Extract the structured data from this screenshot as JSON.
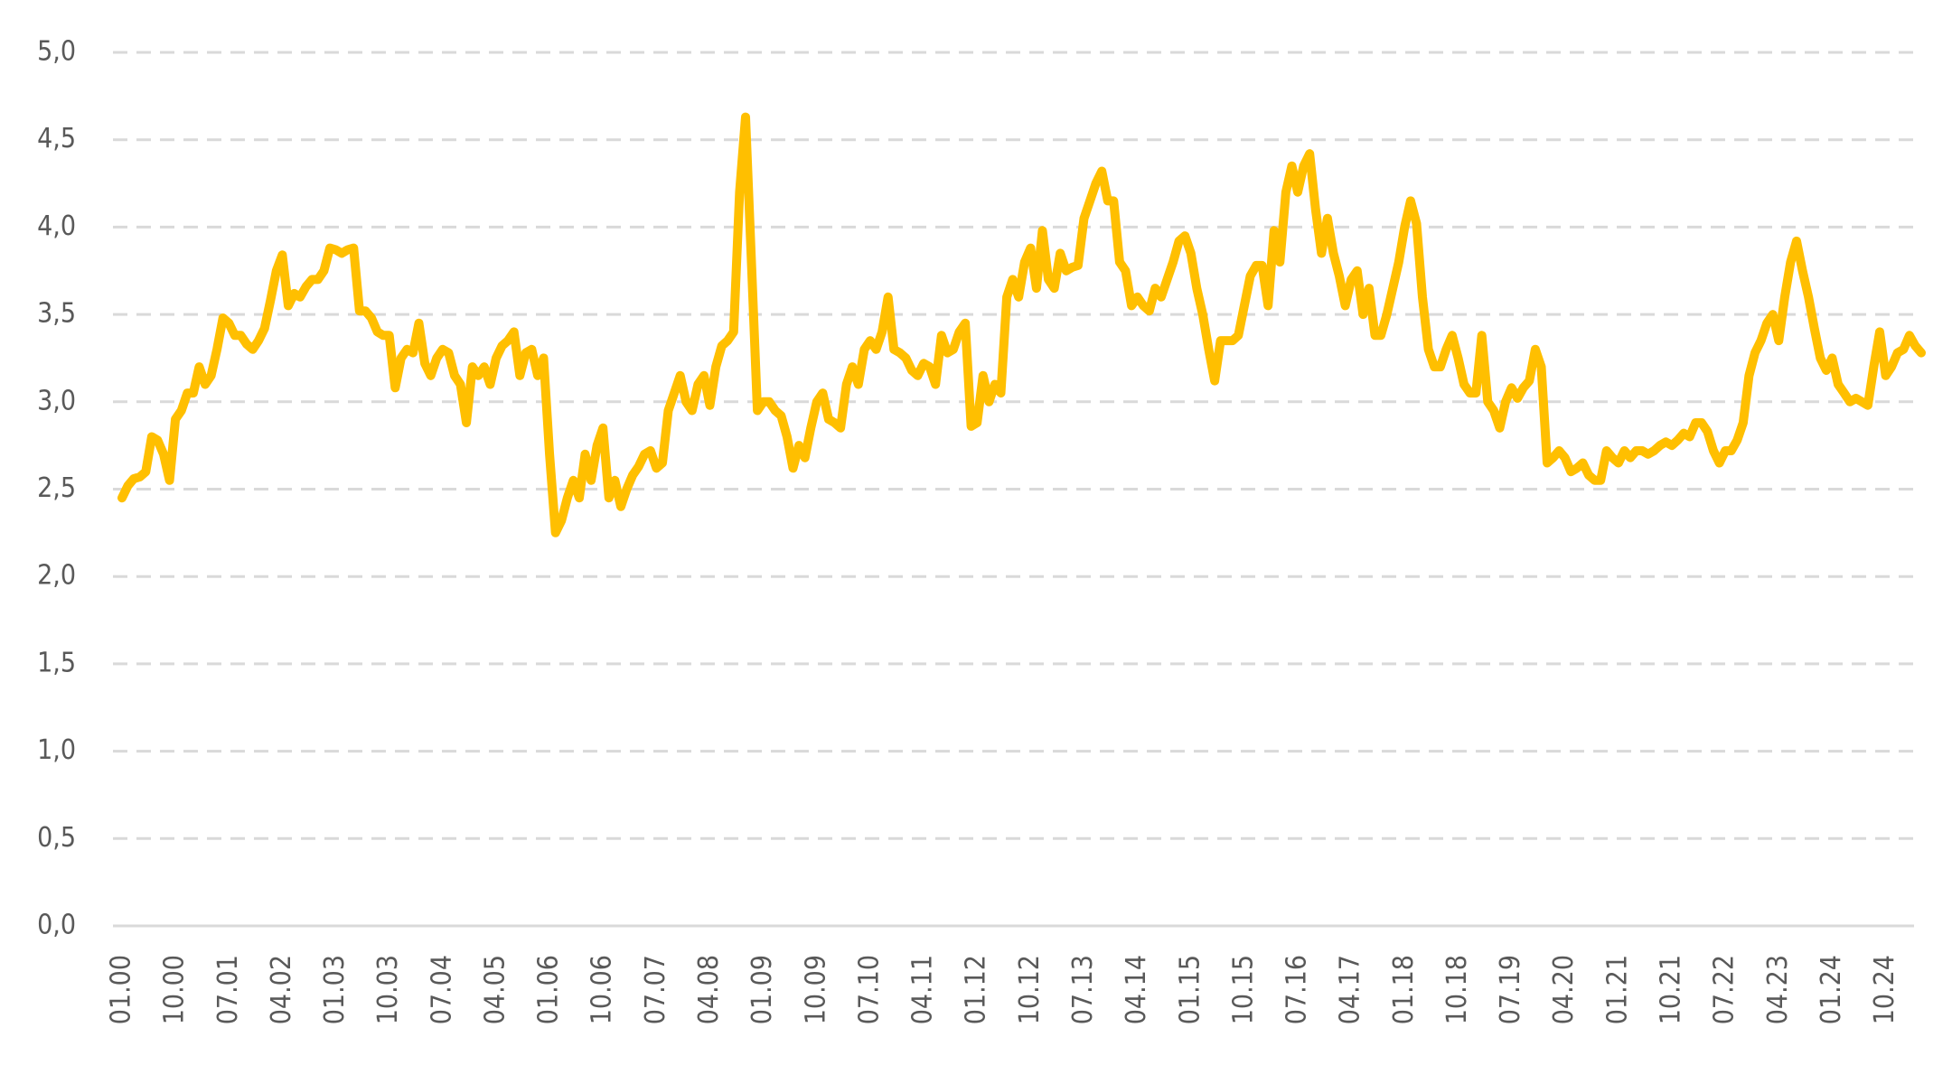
{
  "chart_data": {
    "type": "line",
    "color": "#ffbf00",
    "grid": true,
    "ylim": [
      0,
      5
    ],
    "yticks": [
      {
        "value": 0,
        "label": "0,0"
      },
      {
        "value": 0.5,
        "label": "0,5"
      },
      {
        "value": 1,
        "label": "1,0"
      },
      {
        "value": 1.5,
        "label": "1,5"
      },
      {
        "value": 2,
        "label": "2,0"
      },
      {
        "value": 2.5,
        "label": "2,5"
      },
      {
        "value": 3,
        "label": "3,0"
      },
      {
        "value": 3.5,
        "label": "3,5"
      },
      {
        "value": 4,
        "label": "4,0"
      },
      {
        "value": 4.5,
        "label": "4,5"
      },
      {
        "value": 5,
        "label": "5,0"
      }
    ],
    "categories": [
      "01.00",
      null,
      null,
      null,
      null,
      null,
      null,
      null,
      null,
      "10.00",
      null,
      null,
      null,
      null,
      null,
      null,
      null,
      null,
      "07.01",
      null,
      null,
      null,
      null,
      null,
      null,
      null,
      null,
      "04.02",
      null,
      null,
      null,
      null,
      null,
      null,
      null,
      null,
      "01.03",
      null,
      null,
      null,
      null,
      null,
      null,
      null,
      null,
      "10.03",
      null,
      null,
      null,
      null,
      null,
      null,
      null,
      null,
      "07.04",
      null,
      null,
      null,
      null,
      null,
      null,
      null,
      null,
      "04.05",
      null,
      null,
      null,
      null,
      null,
      null,
      null,
      null,
      "01.06",
      null,
      null,
      null,
      null,
      null,
      null,
      null,
      null,
      "10.06",
      null,
      null,
      null,
      null,
      null,
      null,
      null,
      null,
      "07.07",
      null,
      null,
      null,
      null,
      null,
      null,
      null,
      null,
      "04.08",
      null,
      null,
      null,
      null,
      null,
      null,
      null,
      null,
      "01.09",
      null,
      null,
      null,
      null,
      null,
      null,
      null,
      null,
      "10.09",
      null,
      null,
      null,
      null,
      null,
      null,
      null,
      null,
      "07.10",
      null,
      null,
      null,
      null,
      null,
      null,
      null,
      null,
      "04.11",
      null,
      null,
      null,
      null,
      null,
      null,
      null,
      null,
      "01.12",
      null,
      null,
      null,
      null,
      null,
      null,
      null,
      null,
      "10.12",
      null,
      null,
      null,
      null,
      null,
      null,
      null,
      null,
      "07.13",
      null,
      null,
      null,
      null,
      null,
      null,
      null,
      null,
      "04.14",
      null,
      null,
      null,
      null,
      null,
      null,
      null,
      null,
      "01.15",
      null,
      null,
      null,
      null,
      null,
      null,
      null,
      null,
      "10.15",
      null,
      null,
      null,
      null,
      null,
      null,
      null,
      null,
      "07.16",
      null,
      null,
      null,
      null,
      null,
      null,
      null,
      null,
      "04.17",
      null,
      null,
      null,
      null,
      null,
      null,
      null,
      null,
      "01.18",
      null,
      null,
      null,
      null,
      null,
      null,
      null,
      null,
      "10.18",
      null,
      null,
      null,
      null,
      null,
      null,
      null,
      null,
      "07.19",
      null,
      null,
      null,
      null,
      null,
      null,
      null,
      null,
      "04.20",
      null,
      null,
      null,
      null,
      null,
      null,
      null,
      null,
      "01.21",
      null,
      null,
      null,
      null,
      null,
      null,
      null,
      null,
      "10.21",
      null,
      null,
      null,
      null,
      null,
      null,
      null,
      null,
      "07.22",
      null,
      null,
      null,
      null,
      null,
      null,
      null,
      null,
      "04.23",
      null,
      null,
      null,
      null,
      null,
      null,
      null,
      null,
      "01.24",
      null,
      null,
      null,
      null,
      null,
      null,
      null,
      null,
      "10.24",
      null,
      null,
      null,
      null,
      null,
      null
    ],
    "values": [
      2.45,
      2.52,
      2.56,
      2.57,
      2.6,
      2.8,
      2.78,
      2.7,
      2.55,
      2.9,
      2.95,
      3.05,
      3.05,
      3.2,
      3.1,
      3.15,
      3.3,
      3.48,
      3.45,
      3.38,
      3.38,
      3.33,
      3.3,
      3.35,
      3.42,
      3.58,
      3.75,
      3.84,
      3.55,
      3.62,
      3.6,
      3.66,
      3.7,
      3.7,
      3.75,
      3.88,
      3.87,
      3.85,
      3.87,
      3.88,
      3.52,
      3.52,
      3.48,
      3.4,
      3.38,
      3.38,
      3.08,
      3.25,
      3.3,
      3.28,
      3.45,
      3.22,
      3.15,
      3.25,
      3.3,
      3.28,
      3.15,
      3.1,
      2.88,
      3.2,
      3.15,
      3.2,
      3.1,
      3.25,
      3.32,
      3.35,
      3.4,
      3.15,
      3.28,
      3.3,
      3.15,
      3.25,
      2.7,
      2.25,
      2.32,
      2.45,
      2.55,
      2.45,
      2.7,
      2.55,
      2.75,
      2.85,
      2.45,
      2.55,
      2.4,
      2.5,
      2.58,
      2.63,
      2.7,
      2.72,
      2.62,
      2.65,
      2.95,
      3.05,
      3.15,
      3.0,
      2.95,
      3.1,
      3.15,
      2.98,
      3.2,
      3.32,
      3.35,
      3.4,
      4.2,
      4.63,
      3.8,
      2.95,
      3.0,
      3.0,
      2.95,
      2.92,
      2.8,
      2.62,
      2.75,
      2.68,
      2.85,
      3.0,
      3.05,
      2.9,
      2.88,
      2.85,
      3.1,
      3.2,
      3.1,
      3.3,
      3.35,
      3.3,
      3.4,
      3.6,
      3.3,
      3.28,
      3.25,
      3.18,
      3.15,
      3.22,
      3.2,
      3.1,
      3.38,
      3.28,
      3.3,
      3.4,
      3.45,
      2.86,
      2.88,
      3.15,
      3.0,
      3.1,
      3.05,
      3.6,
      3.7,
      3.6,
      3.8,
      3.88,
      3.65,
      3.98,
      3.7,
      3.65,
      3.85,
      3.75,
      3.77,
      3.78,
      4.05,
      4.15,
      4.25,
      4.32,
      4.15,
      4.15,
      3.8,
      3.75,
      3.55,
      3.6,
      3.55,
      3.52,
      3.65,
      3.6,
      3.7,
      3.8,
      3.92,
      3.95,
      3.85,
      3.65,
      3.5,
      3.3,
      3.12,
      3.35,
      3.35,
      3.35,
      3.38,
      3.55,
      3.72,
      3.78,
      3.78,
      3.55,
      3.98,
      3.8,
      4.2,
      4.35,
      4.2,
      4.35,
      4.42,
      4.1,
      3.85,
      4.05,
      3.85,
      3.72,
      3.55,
      3.7,
      3.75,
      3.5,
      3.65,
      3.38,
      3.38,
      3.5,
      3.65,
      3.8,
      4.0,
      4.15,
      4.02,
      3.6,
      3.3,
      3.2,
      3.2,
      3.3,
      3.38,
      3.25,
      3.1,
      3.05,
      3.05,
      3.38,
      3.0,
      2.95,
      2.85,
      3.0,
      3.08,
      3.02,
      3.08,
      3.12,
      3.3,
      3.2,
      2.65,
      2.68,
      2.72,
      2.68,
      2.6,
      2.62,
      2.65,
      2.58,
      2.55,
      2.55,
      2.72,
      2.68,
      2.65,
      2.72,
      2.68,
      2.72,
      2.72,
      2.7,
      2.72,
      2.75,
      2.77,
      2.75,
      2.78,
      2.82,
      2.8,
      2.88,
      2.88,
      2.83,
      2.72,
      2.65,
      2.72,
      2.72,
      2.78,
      2.88,
      3.15,
      3.28,
      3.35,
      3.45,
      3.5,
      3.35,
      3.6,
      3.8,
      3.92,
      3.75,
      3.6,
      3.42,
      3.25,
      3.18,
      3.25,
      3.1,
      3.05,
      3.0,
      3.02,
      3.0,
      2.98,
      3.2,
      3.4,
      3.15,
      3.2,
      3.28,
      3.3,
      3.38,
      3.32,
      3.28
    ]
  }
}
